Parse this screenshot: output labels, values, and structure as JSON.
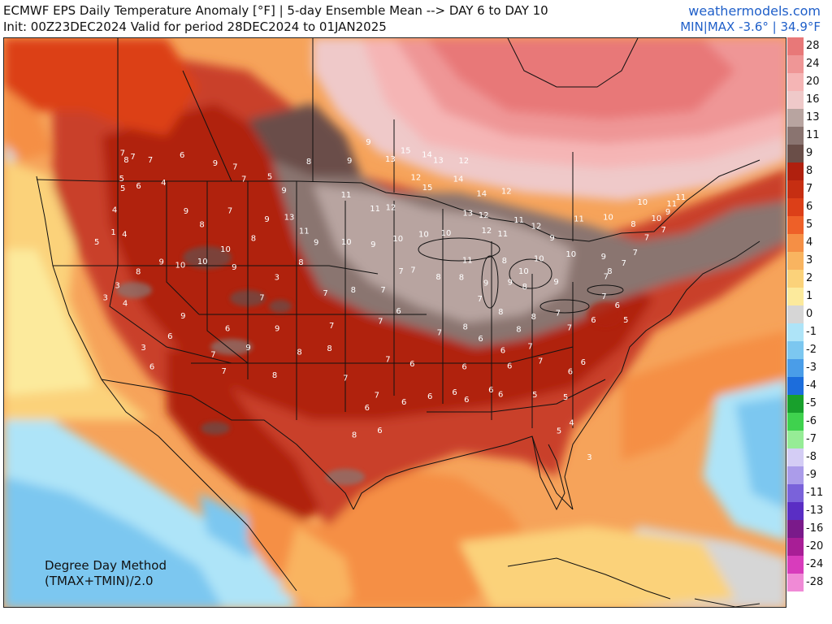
{
  "header": {
    "title": "ECMWF EPS Daily Temperature Anomaly [°F] | 5-day Ensemble Mean --> DAY 6 to DAY 10",
    "subtitle": "Init: 00Z23DEC2024 Valid for period 28DEC2024 to 01JAN2025",
    "brand": "weathermodels.com",
    "minmax": "MIN|MAX -3.6° | 34.9°F"
  },
  "method": {
    "line1": "Degree Day Method",
    "line2": "(TMAX+TMIN)/2.0"
  },
  "colorbar": {
    "levels": [
      {
        "label": "28",
        "color": "#e87878"
      },
      {
        "label": "24",
        "color": "#ef9696"
      },
      {
        "label": "20",
        "color": "#f5b5b5"
      },
      {
        "label": "16",
        "color": "#efc9c9"
      },
      {
        "label": "13",
        "color": "#b8a4a0"
      },
      {
        "label": "11",
        "color": "#8a7470"
      },
      {
        "label": "9",
        "color": "#6a4e48"
      },
      {
        "label": "8",
        "color": "#b0200e"
      },
      {
        "label": "7",
        "color": "#c62e12"
      },
      {
        "label": "6",
        "color": "#dc3f18"
      },
      {
        "label": "5",
        "color": "#ee6028"
      },
      {
        "label": "4",
        "color": "#f58f45"
      },
      {
        "label": "3",
        "color": "#f9b460"
      },
      {
        "label": "2",
        "color": "#fbd27a"
      },
      {
        "label": "1",
        "color": "#fcea9c"
      },
      {
        "label": "0",
        "color": "#d6d6d6"
      },
      {
        "label": "-1",
        "color": "#aee4f8"
      },
      {
        "label": "-2",
        "color": "#7cc7f0"
      },
      {
        "label": "-3",
        "color": "#4a9de8"
      },
      {
        "label": "-4",
        "color": "#1c6ddc"
      },
      {
        "label": "-5",
        "color": "#18a02c"
      },
      {
        "label": "-6",
        "color": "#3fd24e"
      },
      {
        "label": "-7",
        "color": "#96ec96"
      },
      {
        "label": "-8",
        "color": "#d4cdf5"
      },
      {
        "label": "-9",
        "color": "#ab9cea"
      },
      {
        "label": "-11",
        "color": "#7a62da"
      },
      {
        "label": "-13",
        "color": "#5a2ec4"
      },
      {
        "label": "-16",
        "color": "#7a1a8a"
      },
      {
        "label": "-20",
        "color": "#a81e96"
      },
      {
        "label": "-24",
        "color": "#d83cbc"
      },
      {
        "label": "-28",
        "color": "#f08ad6"
      }
    ]
  },
  "station_values": [
    {
      "v": "7",
      "lon": -123.4,
      "lat": 48.0
    },
    {
      "v": "8",
      "lon": -122.9,
      "lat": 47.5
    },
    {
      "v": "7",
      "lon": -122.3,
      "lat": 47.7
    },
    {
      "v": "7",
      "lon": -120.5,
      "lat": 47.4
    },
    {
      "v": "6",
      "lon": -117.4,
      "lat": 47.6
    },
    {
      "v": "5",
      "lon": -123.0,
      "lat": 46.2
    },
    {
      "v": "5",
      "lon": -122.7,
      "lat": 45.5
    },
    {
      "v": "6",
      "lon": -121.2,
      "lat": 45.6
    },
    {
      "v": "4",
      "lon": -118.8,
      "lat": 45.7
    },
    {
      "v": "4",
      "lon": -123.1,
      "lat": 44.0
    },
    {
      "v": "1",
      "lon": -122.8,
      "lat": 42.4
    },
    {
      "v": "5",
      "lon": -124.2,
      "lat": 41.8
    },
    {
      "v": "4",
      "lon": -121.7,
      "lat": 42.2
    },
    {
      "v": "9",
      "lon": -116.2,
      "lat": 43.6
    },
    {
      "v": "8",
      "lon": -114.5,
      "lat": 42.6
    },
    {
      "v": "7",
      "lon": -112.0,
      "lat": 43.5
    },
    {
      "v": "9",
      "lon": -114.0,
      "lat": 46.9
    },
    {
      "v": "7",
      "lon": -112.0,
      "lat": 46.6
    },
    {
      "v": "5",
      "lon": -108.5,
      "lat": 45.8
    },
    {
      "v": "7",
      "lon": -111.0,
      "lat": 45.7
    },
    {
      "v": "8",
      "lon": -104.8,
      "lat": 46.8
    },
    {
      "v": "9",
      "lon": -100.8,
      "lat": 46.8
    },
    {
      "v": "9",
      "lon": -99.0,
      "lat": 48.1
    },
    {
      "v": "13",
      "lon": -96.8,
      "lat": 46.9
    },
    {
      "v": "15",
      "lon": -95.3,
      "lat": 47.5
    },
    {
      "v": "14",
      "lon": -93.2,
      "lat": 47.2
    },
    {
      "v": "13",
      "lon": -92.1,
      "lat": 46.8
    },
    {
      "v": "12",
      "lon": -94.3,
      "lat": 45.6
    },
    {
      "v": "15",
      "lon": -93.2,
      "lat": 44.9
    },
    {
      "v": "12",
      "lon": -89.6,
      "lat": 46.8
    },
    {
      "v": "14",
      "lon": -90.2,
      "lat": 45.5
    },
    {
      "v": "13",
      "lon": -89.4,
      "lat": 43.1
    },
    {
      "v": "14",
      "lon": -88.0,
      "lat": 44.5
    },
    {
      "v": "12",
      "lon": -87.9,
      "lat": 43.0
    },
    {
      "v": "12",
      "lon": -85.6,
      "lat": 44.7
    },
    {
      "v": "11",
      "lon": -84.6,
      "lat": 42.7
    },
    {
      "v": "12",
      "lon": -83.0,
      "lat": 42.3
    },
    {
      "v": "11",
      "lon": -86.2,
      "lat": 41.7
    },
    {
      "v": "12",
      "lon": -87.7,
      "lat": 41.9
    },
    {
      "v": "11",
      "lon": -89.6,
      "lat": 39.8
    },
    {
      "v": "10",
      "lon": -91.5,
      "lat": 41.7
    },
    {
      "v": "10",
      "lon": -93.6,
      "lat": 41.6
    },
    {
      "v": "10",
      "lon": -96.0,
      "lat": 41.3
    },
    {
      "v": "9",
      "lon": -98.3,
      "lat": 40.9
    },
    {
      "v": "10",
      "lon": -100.8,
      "lat": 41.1
    },
    {
      "v": "9",
      "lon": -103.6,
      "lat": 41.1
    },
    {
      "v": "11",
      "lon": -101.0,
      "lat": 44.4
    },
    {
      "v": "11",
      "lon": -98.2,
      "lat": 43.4
    },
    {
      "v": "12",
      "lon": -96.7,
      "lat": 43.5
    },
    {
      "v": "9",
      "lon": -107.0,
      "lat": 44.8
    },
    {
      "v": "11",
      "lon": -104.8,
      "lat": 41.9
    },
    {
      "v": "13",
      "lon": -106.3,
      "lat": 42.9
    },
    {
      "v": "9",
      "lon": -108.4,
      "lat": 42.8
    },
    {
      "v": "8",
      "lon": -109.5,
      "lat": 41.5
    },
    {
      "v": "10",
      "lon": -112.0,
      "lat": 40.8
    },
    {
      "v": "9",
      "lon": -111.0,
      "lat": 39.5
    },
    {
      "v": "10",
      "lon": -114.0,
      "lat": 40.0
    },
    {
      "v": "10",
      "lon": -116.0,
      "lat": 39.8
    },
    {
      "v": "9",
      "lon": -117.8,
      "lat": 40.1
    },
    {
      "v": "8",
      "lon": -119.8,
      "lat": 39.5
    },
    {
      "v": "3",
      "lon": -122.4,
      "lat": 37.8
    },
    {
      "v": "3",
      "lon": -121.5,
      "lat": 38.6
    },
    {
      "v": "4",
      "lon": -120.5,
      "lat": 37.3
    },
    {
      "v": "3",
      "lon": -118.2,
      "lat": 34.1
    },
    {
      "v": "6",
      "lon": -117.2,
      "lat": 32.7
    },
    {
      "v": "6",
      "lon": -116.0,
      "lat": 34.8
    },
    {
      "v": "9",
      "lon": -115.1,
      "lat": 36.2
    },
    {
      "v": "7",
      "lon": -112.0,
      "lat": 33.4
    },
    {
      "v": "6",
      "lon": -111.0,
      "lat": 35.2
    },
    {
      "v": "9",
      "lon": -109.0,
      "lat": 33.8
    },
    {
      "v": "7",
      "lon": -110.9,
      "lat": 32.2
    },
    {
      "v": "9",
      "lon": -106.6,
      "lat": 35.1
    },
    {
      "v": "8",
      "lon": -106.5,
      "lat": 31.8
    },
    {
      "v": "8",
      "lon": -104.5,
      "lat": 33.4
    },
    {
      "v": "7",
      "lon": -108.2,
      "lat": 37.3
    },
    {
      "v": "8",
      "lon": -104.9,
      "lat": 39.7
    },
    {
      "v": "7",
      "lon": -102.5,
      "lat": 37.5
    },
    {
      "v": "3",
      "lon": -107.0,
      "lat": 38.7
    },
    {
      "v": "8",
      "lon": -100.0,
      "lat": 37.7
    },
    {
      "v": "7",
      "lon": -97.3,
      "lat": 37.7
    },
    {
      "v": "7",
      "lon": -95.7,
      "lat": 39.0
    },
    {
      "v": "7",
      "lon": -94.6,
      "lat": 39.1
    },
    {
      "v": "8",
      "lon": -92.3,
      "lat": 38.6
    },
    {
      "v": "8",
      "lon": -90.2,
      "lat": 38.6
    },
    {
      "v": "9",
      "lon": -88.0,
      "lat": 38.2
    },
    {
      "v": "8",
      "lon": -86.2,
      "lat": 39.8
    },
    {
      "v": "10",
      "lon": -84.5,
      "lat": 39.1
    },
    {
      "v": "10",
      "lon": -83.0,
      "lat": 40.0
    },
    {
      "v": "9",
      "lon": -81.6,
      "lat": 41.5
    },
    {
      "v": "10",
      "lon": -80.0,
      "lat": 40.4
    },
    {
      "v": "9",
      "lon": -77.0,
      "lat": 40.3
    },
    {
      "v": "11",
      "lon": -78.9,
      "lat": 42.9
    },
    {
      "v": "10",
      "lon": -76.1,
      "lat": 43.1
    },
    {
      "v": "8",
      "lon": -73.8,
      "lat": 42.7
    },
    {
      "v": "7",
      "lon": -72.7,
      "lat": 41.8
    },
    {
      "v": "7",
      "lon": -71.0,
      "lat": 42.4
    },
    {
      "v": "9",
      "lon": -70.3,
      "lat": 43.7
    },
    {
      "v": "11",
      "lon": -69.8,
      "lat": 44.3
    },
    {
      "v": "11",
      "lon": -68.8,
      "lat": 44.8
    },
    {
      "v": "10",
      "lon": -72.6,
      "lat": 44.3
    },
    {
      "v": "10",
      "lon": -71.5,
      "lat": 43.2
    },
    {
      "v": "7",
      "lon": -74.0,
      "lat": 40.7
    },
    {
      "v": "7",
      "lon": -75.2,
      "lat": 39.9
    },
    {
      "v": "8",
      "lon": -76.6,
      "lat": 39.3
    },
    {
      "v": "7",
      "lon": -77.0,
      "lat": 38.9
    },
    {
      "v": "7",
      "lon": -77.4,
      "lat": 37.5
    },
    {
      "v": "6",
      "lon": -76.3,
      "lat": 36.9
    },
    {
      "v": "5",
      "lon": -75.7,
      "lat": 35.9
    },
    {
      "v": "6",
      "lon": -78.6,
      "lat": 35.8
    },
    {
      "v": "7",
      "lon": -80.8,
      "lat": 35.2
    },
    {
      "v": "7",
      "lon": -81.7,
      "lat": 36.2
    },
    {
      "v": "6",
      "lon": -79.9,
      "lat": 32.8
    },
    {
      "v": "6",
      "lon": -81.1,
      "lat": 32.1
    },
    {
      "v": "5",
      "lon": -81.7,
      "lat": 30.3
    },
    {
      "v": "4",
      "lon": -81.4,
      "lat": 28.5
    },
    {
      "v": "3",
      "lon": -80.2,
      "lat": 26.1
    },
    {
      "v": "5",
      "lon": -82.5,
      "lat": 27.9
    },
    {
      "v": "5",
      "lon": -84.3,
      "lat": 30.4
    },
    {
      "v": "6",
      "lon": -87.2,
      "lat": 30.4
    },
    {
      "v": "6",
      "lon": -88.0,
      "lat": 30.7
    },
    {
      "v": "6",
      "lon": -90.1,
      "lat": 30.0
    },
    {
      "v": "6",
      "lon": -91.1,
      "lat": 30.5
    },
    {
      "v": "6",
      "lon": -93.2,
      "lat": 30.2
    },
    {
      "v": "6",
      "lon": -95.4,
      "lat": 29.8
    },
    {
      "v": "7",
      "lon": -97.7,
      "lat": 30.3
    },
    {
      "v": "6",
      "lon": -98.5,
      "lat": 29.4
    },
    {
      "v": "8",
      "lon": -99.5,
      "lat": 27.5
    },
    {
      "v": "6",
      "lon": -97.4,
      "lat": 27.8
    },
    {
      "v": "7",
      "lon": -96.8,
      "lat": 32.8
    },
    {
      "v": "6",
      "lon": -94.7,
      "lat": 32.5
    },
    {
      "v": "7",
      "lon": -97.5,
      "lat": 35.5
    },
    {
      "v": "6",
      "lon": -95.9,
      "lat": 36.2
    },
    {
      "v": "7",
      "lon": -101.8,
      "lat": 35.2
    },
    {
      "v": "8",
      "lon": -101.9,
      "lat": 33.6
    },
    {
      "v": "7",
      "lon": -100.4,
      "lat": 31.5
    },
    {
      "v": "7",
      "lon": -92.3,
      "lat": 34.7
    },
    {
      "v": "6",
      "lon": -90.2,
      "lat": 32.3
    },
    {
      "v": "6",
      "lon": -88.7,
      "lat": 34.3
    },
    {
      "v": "6",
      "lon": -86.8,
      "lat": 33.5
    },
    {
      "v": "6",
      "lon": -86.3,
      "lat": 32.4
    },
    {
      "v": "7",
      "lon": -84.4,
      "lat": 33.8
    },
    {
      "v": "7",
      "lon": -83.6,
      "lat": 32.8
    },
    {
      "v": "8",
      "lon": -86.8,
      "lat": 36.2
    },
    {
      "v": "8",
      "lon": -85.3,
      "lat": 35.0
    },
    {
      "v": "8",
      "lon": -83.9,
      "lat": 35.9
    },
    {
      "v": "9",
      "lon": -85.8,
      "lat": 38.3
    },
    {
      "v": "8",
      "lon": -84.5,
      "lat": 38.0
    },
    {
      "v": "9",
      "lon": -81.6,
      "lat": 38.4
    },
    {
      "v": "8",
      "lon": -90.0,
      "lat": 35.1
    },
    {
      "v": "7",
      "lon": -88.6,
      "lat": 37.1
    }
  ]
}
